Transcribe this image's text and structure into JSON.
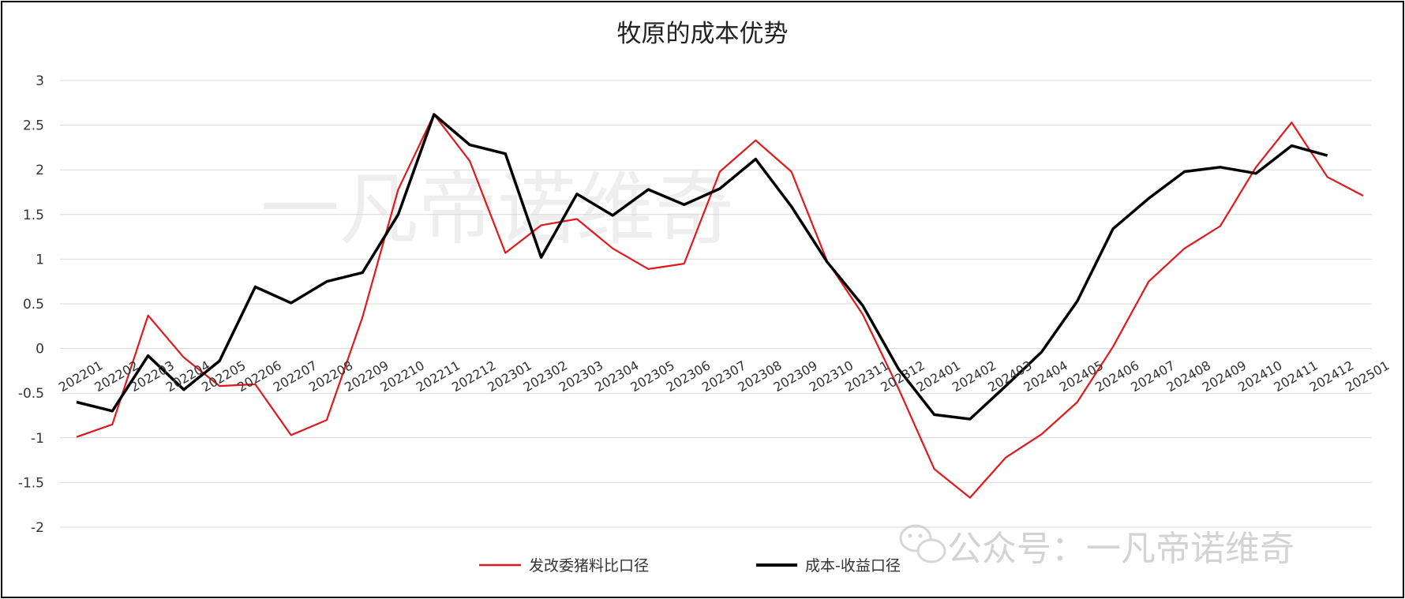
{
  "chart_data": {
    "type": "line",
    "title": "牧原的成本优势",
    "xlabel": "",
    "ylabel": "",
    "ylim": [
      -2,
      3
    ],
    "yticks": [
      3,
      2.5,
      2,
      1.5,
      1,
      0.5,
      0,
      -0.5,
      -1,
      -1.5,
      -2
    ],
    "ytick_labels": [
      "3",
      "2.5",
      "2",
      "1.5",
      "1",
      "0.5",
      "0",
      "-0.5",
      "-1",
      "-1.5",
      "-2"
    ],
    "grid": true,
    "legend_position": "bottom",
    "categories": [
      "202201",
      "202202",
      "202203",
      "202204",
      "202205",
      "202206",
      "202207",
      "202208",
      "202209",
      "202210",
      "202211",
      "202212",
      "202301",
      "202302",
      "202303",
      "202304",
      "202305",
      "202306",
      "202307",
      "202308",
      "202309",
      "202310",
      "202311",
      "202312",
      "202401",
      "202402",
      "202403",
      "202404",
      "202405",
      "202406",
      "202407",
      "202408",
      "202409",
      "202410",
      "202411",
      "202412",
      "202501"
    ],
    "series": [
      {
        "name": "发改委猪料比口径",
        "color": "#e0191d",
        "values": [
          -0.99,
          -0.85,
          0.37,
          -0.1,
          -0.42,
          -0.4,
          -0.97,
          -0.8,
          0.35,
          1.78,
          2.62,
          2.1,
          1.07,
          1.38,
          1.45,
          1.12,
          0.89,
          0.95,
          1.98,
          2.33,
          1.98,
          0.98,
          0.38,
          -0.45,
          -1.35,
          -1.67,
          -1.22,
          -0.96,
          -0.6,
          0.02,
          0.75,
          1.12,
          1.37,
          2.03,
          2.53,
          1.92,
          1.71
        ]
      },
      {
        "name": "成本-收益口径",
        "color": "#000000",
        "values": [
          -0.6,
          -0.7,
          -0.08,
          -0.46,
          -0.14,
          0.69,
          0.51,
          0.75,
          0.85,
          1.5,
          2.62,
          2.28,
          2.18,
          1.02,
          1.73,
          1.49,
          1.78,
          1.61,
          1.79,
          2.12,
          1.59,
          0.97,
          0.48,
          -0.23,
          -0.74,
          -0.79,
          -0.42,
          -0.04,
          0.53,
          1.34,
          1.68,
          1.98,
          2.03,
          1.96,
          2.27,
          2.16,
          null
        ]
      }
    ]
  },
  "watermarks": {
    "center": "一凡帝诺维奇",
    "corner": "公众号：一凡帝诺维奇"
  },
  "style": {
    "grid_color": "#d9d9d9",
    "axis_text_color": "#333333"
  }
}
